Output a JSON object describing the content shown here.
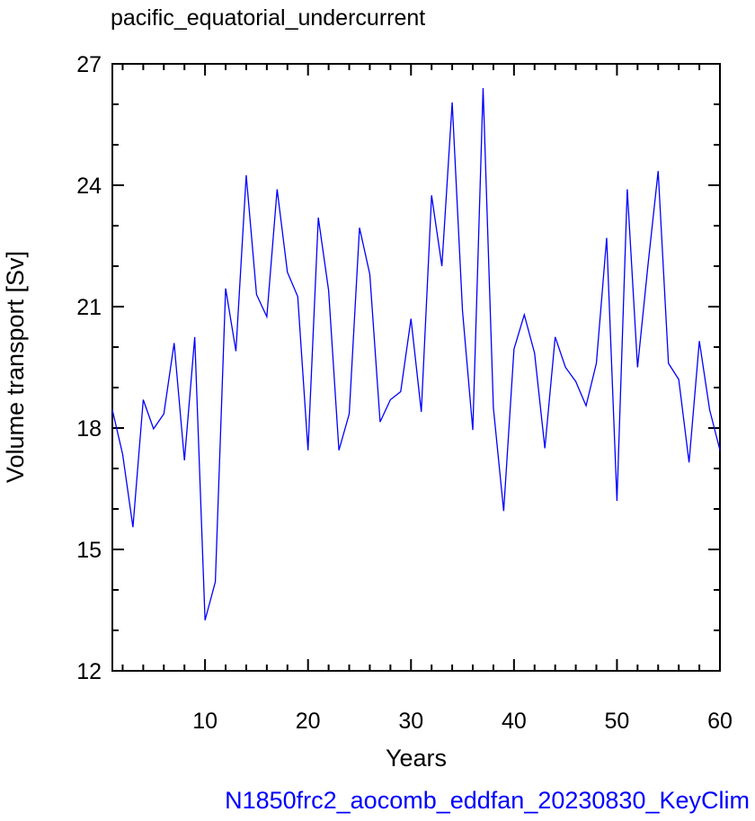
{
  "chart_data": {
    "type": "line",
    "title": "pacific_equatorial_undercurrent",
    "xlabel": "Years",
    "ylabel": "Volume transport [Sv]",
    "footer": "N1850frc2_aocomb_eddfan_20230830_KeyClim",
    "xlim": [
      1,
      60
    ],
    "ylim": [
      12,
      27
    ],
    "x_ticks": [
      10,
      20,
      30,
      40,
      50,
      60
    ],
    "y_ticks": [
      12,
      15,
      18,
      21,
      24,
      27
    ],
    "x_minor_step": 2,
    "y_minor_step": 1,
    "grid": false,
    "line_color": "#0000ff",
    "footer_color": "#0000ff",
    "series": [
      {
        "x": [
          1,
          2,
          3,
          4,
          5,
          6,
          7,
          8,
          9,
          10,
          11,
          12,
          13,
          14,
          15,
          16,
          17,
          18,
          19,
          20,
          21,
          22,
          23,
          24,
          25,
          26,
          27,
          28,
          29,
          30,
          31,
          32,
          33,
          34,
          35,
          36,
          37,
          38,
          39,
          40,
          41,
          42,
          43,
          44,
          45,
          46,
          47,
          48,
          49,
          50,
          51,
          52,
          53,
          54,
          55,
          56,
          57,
          58,
          59,
          60
        ],
        "values": [
          18.45,
          17.35,
          15.55,
          18.7,
          17.98,
          18.35,
          20.1,
          17.2,
          20.25,
          13.25,
          14.2,
          21.45,
          19.9,
          24.25,
          21.3,
          20.75,
          23.9,
          21.85,
          21.25,
          17.45,
          23.2,
          21.4,
          17.45,
          18.35,
          22.95,
          21.8,
          18.15,
          18.7,
          18.9,
          20.7,
          18.4,
          23.75,
          22.0,
          26.05,
          20.9,
          17.95,
          26.4,
          18.5,
          15.95,
          19.95,
          20.8,
          19.85,
          17.5,
          20.25,
          19.5,
          19.15,
          18.55,
          19.6,
          22.7,
          16.2,
          23.9,
          19.5,
          22.0,
          24.35,
          19.6,
          19.2,
          17.15,
          20.15,
          18.45,
          17.45
        ]
      }
    ]
  }
}
